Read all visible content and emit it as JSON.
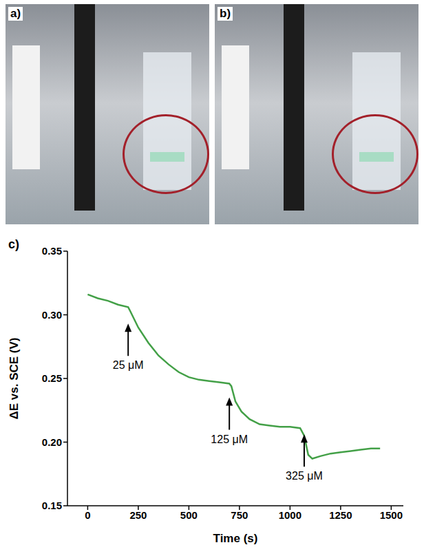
{
  "panels": [
    {
      "label": "a)"
    },
    {
      "label": "b)"
    }
  ],
  "chart_data": {
    "type": "line",
    "panel_label": "c)",
    "x_label": "Time (s)",
    "y_label": "ΔE vs. SCE (V)",
    "x": [
      0,
      50,
      100,
      150,
      200,
      210,
      250,
      300,
      350,
      400,
      450,
      500,
      550,
      600,
      650,
      700,
      710,
      730,
      760,
      800,
      850,
      900,
      950,
      1000,
      1050,
      1070,
      1090,
      1110,
      1150,
      1200,
      1250,
      1300,
      1350,
      1400,
      1445
    ],
    "values": [
      0.316,
      0.313,
      0.311,
      0.308,
      0.306,
      0.303,
      0.29,
      0.278,
      0.268,
      0.261,
      0.255,
      0.251,
      0.249,
      0.248,
      0.247,
      0.246,
      0.244,
      0.232,
      0.224,
      0.218,
      0.214,
      0.213,
      0.212,
      0.212,
      0.211,
      0.205,
      0.19,
      0.187,
      0.189,
      0.191,
      0.192,
      0.193,
      0.194,
      0.195,
      0.195
    ],
    "color": "#43a047",
    "xlim": [
      -100,
      1560
    ],
    "ylim": [
      0.15,
      0.35
    ],
    "xticks": [
      0,
      250,
      500,
      750,
      1000,
      1250,
      1500
    ],
    "yticks": [
      0.15,
      {
        "value": 0.2,
        "label": "0.20"
      },
      0.25,
      {
        "value": 0.3,
        "label": "0.30"
      },
      0.35
    ],
    "annotations": [
      {
        "text": "25 μM",
        "x": 200,
        "y": 0.265
      },
      {
        "text": "125 μM",
        "x": 700,
        "y": 0.207
      },
      {
        "text": "325 μM",
        "x": 1070,
        "y": 0.178
      }
    ]
  }
}
